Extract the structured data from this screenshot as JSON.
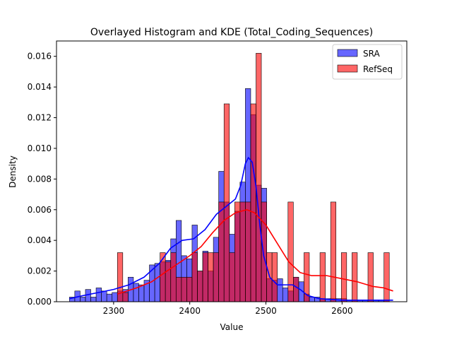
{
  "chart_data": {
    "type": "histogram",
    "title": "Overlayed Histogram and KDE (Total_Coding_Sequences)",
    "xlabel": "Value",
    "ylabel": "Density",
    "xlim": [
      2225,
      2685
    ],
    "ylim": [
      0,
      0.017
    ],
    "x_ticks": [
      2300,
      2400,
      2500,
      2600
    ],
    "x_tick_labels": [
      "2300",
      "2400",
      "2500",
      "2600"
    ],
    "y_ticks": [
      0,
      0.002,
      0.004,
      0.006,
      0.008,
      0.01,
      0.012,
      0.014,
      0.016
    ],
    "y_tick_labels": [
      "0.000",
      "0.002",
      "0.004",
      "0.006",
      "0.008",
      "0.010",
      "0.012",
      "0.014",
      "0.016"
    ],
    "legend_position": "top-right",
    "grid": false,
    "series": [
      {
        "name": "SRA",
        "color": "#0000ff",
        "bin_width": 7,
        "bins": [
          {
            "x": 2242,
            "v": 0.0003
          },
          {
            "x": 2249,
            "v": 0.0007
          },
          {
            "x": 2256,
            "v": 0.0003
          },
          {
            "x": 2263,
            "v": 0.0008
          },
          {
            "x": 2270,
            "v": 0.0003
          },
          {
            "x": 2277,
            "v": 0.0009
          },
          {
            "x": 2284,
            "v": 0.0007
          },
          {
            "x": 2291,
            "v": 0.0005
          },
          {
            "x": 2298,
            "v": 0.0006
          },
          {
            "x": 2305,
            "v": 0.0007
          },
          {
            "x": 2312,
            "v": 0.0008
          },
          {
            "x": 2319,
            "v": 0.0016
          },
          {
            "x": 2326,
            "v": 0.0012
          },
          {
            "x": 2333,
            "v": 0.0011
          },
          {
            "x": 2340,
            "v": 0.0014
          },
          {
            "x": 2347,
            "v": 0.0024
          },
          {
            "x": 2354,
            "v": 0.0025
          },
          {
            "x": 2361,
            "v": 0.0026
          },
          {
            "x": 2368,
            "v": 0.0027
          },
          {
            "x": 2375,
            "v": 0.0041
          },
          {
            "x": 2382,
            "v": 0.0053
          },
          {
            "x": 2389,
            "v": 0.003
          },
          {
            "x": 2396,
            "v": 0.0028
          },
          {
            "x": 2403,
            "v": 0.005
          },
          {
            "x": 2410,
            "v": 0.002
          },
          {
            "x": 2417,
            "v": 0.0033
          },
          {
            "x": 2424,
            "v": 0.002
          },
          {
            "x": 2431,
            "v": 0.0042
          },
          {
            "x": 2438,
            "v": 0.0085
          },
          {
            "x": 2445,
            "v": 0.0065
          },
          {
            "x": 2452,
            "v": 0.0044
          },
          {
            "x": 2459,
            "v": 0.0059
          },
          {
            "x": 2466,
            "v": 0.0078
          },
          {
            "x": 2473,
            "v": 0.0139
          },
          {
            "x": 2480,
            "v": 0.0122
          },
          {
            "x": 2487,
            "v": 0.0076
          },
          {
            "x": 2494,
            "v": 0.0074
          },
          {
            "x": 2501,
            "v": 0.0015
          },
          {
            "x": 2508,
            "v": 0.0014
          },
          {
            "x": 2515,
            "v": 0.0015
          },
          {
            "x": 2522,
            "v": 0.0009
          },
          {
            "x": 2529,
            "v": 0.0007
          },
          {
            "x": 2536,
            "v": 0.0016
          },
          {
            "x": 2543,
            "v": 0.0013
          },
          {
            "x": 2550,
            "v": 0.0005
          },
          {
            "x": 2557,
            "v": 0.0003
          },
          {
            "x": 2564,
            "v": 0.0003
          },
          {
            "x": 2571,
            "v": 0.0002
          },
          {
            "x": 2578,
            "v": 0.0002
          },
          {
            "x": 2585,
            "v": 0.0002
          },
          {
            "x": 2592,
            "v": 0.0002
          },
          {
            "x": 2599,
            "v": 0.0002
          },
          {
            "x": 2606,
            "v": 0.0001
          },
          {
            "x": 2613,
            "v": 0.0001
          },
          {
            "x": 2620,
            "v": 0.0001
          },
          {
            "x": 2627,
            "v": 0.0001
          },
          {
            "x": 2634,
            "v": 0.0001
          },
          {
            "x": 2641,
            "v": 0.0001
          },
          {
            "x": 2648,
            "v": 0.0001
          },
          {
            "x": 2655,
            "v": 0.0001
          }
        ],
        "kde": [
          [
            2242,
            0.0002
          ],
          [
            2260,
            0.0004
          ],
          [
            2280,
            0.0006
          ],
          [
            2300,
            0.0008
          ],
          [
            2320,
            0.0011
          ],
          [
            2340,
            0.0016
          ],
          [
            2360,
            0.0025
          ],
          [
            2375,
            0.0035
          ],
          [
            2390,
            0.004
          ],
          [
            2405,
            0.0041
          ],
          [
            2420,
            0.0047
          ],
          [
            2435,
            0.0057
          ],
          [
            2450,
            0.0063
          ],
          [
            2460,
            0.0067
          ],
          [
            2467,
            0.0076
          ],
          [
            2473,
            0.009
          ],
          [
            2477,
            0.0094
          ],
          [
            2482,
            0.0091
          ],
          [
            2487,
            0.0075
          ],
          [
            2492,
            0.005
          ],
          [
            2497,
            0.003
          ],
          [
            2505,
            0.0016
          ],
          [
            2515,
            0.0011
          ],
          [
            2525,
            0.0011
          ],
          [
            2535,
            0.0011
          ],
          [
            2545,
            0.0008
          ],
          [
            2555,
            0.0004
          ],
          [
            2570,
            0.0002
          ],
          [
            2600,
            0.0001
          ],
          [
            2630,
            0.0001
          ],
          [
            2667,
            0.0001
          ]
        ]
      },
      {
        "name": "RefSeq",
        "color": "#ff0000",
        "bin_width": 7,
        "bins": [
          {
            "x": 2305,
            "v": 0.0032
          },
          {
            "x": 2312,
            "v": 0.0006
          },
          {
            "x": 2361,
            "v": 0.0032
          },
          {
            "x": 2368,
            "v": 0.0026
          },
          {
            "x": 2375,
            "v": 0.0032
          },
          {
            "x": 2382,
            "v": 0.0016
          },
          {
            "x": 2389,
            "v": 0.0016
          },
          {
            "x": 2396,
            "v": 0.0016
          },
          {
            "x": 2403,
            "v": 0.0032
          },
          {
            "x": 2410,
            "v": 0.002
          },
          {
            "x": 2417,
            "v": 0.0032
          },
          {
            "x": 2424,
            "v": 0.0032
          },
          {
            "x": 2431,
            "v": 0.0032
          },
          {
            "x": 2438,
            "v": 0.0065
          },
          {
            "x": 2445,
            "v": 0.0129
          },
          {
            "x": 2452,
            "v": 0.0032
          },
          {
            "x": 2459,
            "v": 0.0065
          },
          {
            "x": 2466,
            "v": 0.0065
          },
          {
            "x": 2473,
            "v": 0.0065
          },
          {
            "x": 2480,
            "v": 0.0129
          },
          {
            "x": 2487,
            "v": 0.0162
          },
          {
            "x": 2494,
            "v": 0.0065
          },
          {
            "x": 2501,
            "v": 0.0032
          },
          {
            "x": 2508,
            "v": 0.0032
          },
          {
            "x": 2529,
            "v": 0.0065
          },
          {
            "x": 2536,
            "v": 0.0016
          },
          {
            "x": 2550,
            "v": 0.0032
          },
          {
            "x": 2571,
            "v": 0.0032
          },
          {
            "x": 2585,
            "v": 0.0065
          },
          {
            "x": 2599,
            "v": 0.0032
          },
          {
            "x": 2613,
            "v": 0.0032
          },
          {
            "x": 2634,
            "v": 0.0032
          },
          {
            "x": 2655,
            "v": 0.0032
          }
        ],
        "kde": [
          [
            2305,
            0.0005
          ],
          [
            2330,
            0.0009
          ],
          [
            2350,
            0.0013
          ],
          [
            2370,
            0.002
          ],
          [
            2385,
            0.0025
          ],
          [
            2400,
            0.003
          ],
          [
            2415,
            0.0036
          ],
          [
            2430,
            0.0045
          ],
          [
            2445,
            0.0053
          ],
          [
            2460,
            0.0058
          ],
          [
            2475,
            0.006
          ],
          [
            2485,
            0.0058
          ],
          [
            2500,
            0.005
          ],
          [
            2515,
            0.0038
          ],
          [
            2530,
            0.0026
          ],
          [
            2545,
            0.0019
          ],
          [
            2560,
            0.0017
          ],
          [
            2580,
            0.0017
          ],
          [
            2600,
            0.0015
          ],
          [
            2620,
            0.0013
          ],
          [
            2640,
            0.001
          ],
          [
            2655,
            0.0009
          ],
          [
            2667,
            0.0007
          ]
        ]
      }
    ]
  }
}
